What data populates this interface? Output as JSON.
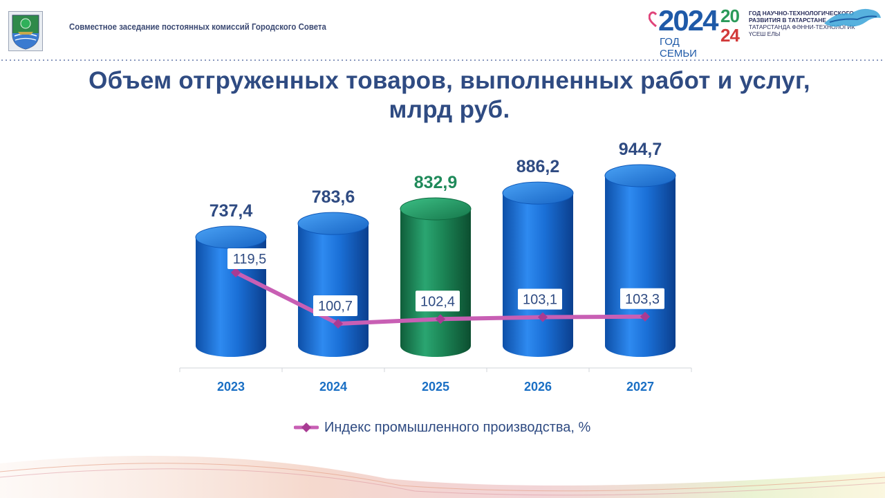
{
  "header": {
    "text": "Совместное заседание постоянных комиссий Городского Совета"
  },
  "logos": {
    "year_number": "2024",
    "year_caption": "ГОД СЕМЬИ",
    "tech_year_lines": [
      "20",
      "24"
    ],
    "tech_text_lines": [
      "ГОД НАУЧНО-ТЕХНОЛОГИЧЕСКОГО",
      "РАЗВИТИЯ В ТАТАРСТАНЕ",
      "ТАТАРСТАНДА ФӘННИ-ТЕХНОЛОГИК",
      "ҮСЕШ ЕЛЫ"
    ]
  },
  "title": {
    "line1": "Объем отгруженных товаров, выполненных работ и услуг,",
    "line2": "млрд руб."
  },
  "chart_data": {
    "type": "bar",
    "categories": [
      "2023",
      "2024",
      "2025",
      "2026",
      "2027"
    ],
    "series": [
      {
        "values": [
          737.4,
          783.6,
          832.9,
          886.2,
          944.7
        ],
        "labels": [
          "737,4",
          "783,6",
          "832,9",
          "886,2",
          "944,7"
        ]
      },
      {
        "type": "line",
        "name": "Индекс промышленного производства, %",
        "values": [
          119.5,
          100.7,
          102.4,
          103.1,
          103.3
        ],
        "labels": [
          "119,5",
          "100,7",
          "102,4",
          "103,1",
          "103,3"
        ]
      }
    ],
    "highlight_index": 2,
    "legend_position": "bottom",
    "colors": {
      "bar": "#1a6fd0",
      "bar_highlight": "#1f8a5a",
      "bar_label": "#2f4b82",
      "bar_label_highlight": "#1f8a5a",
      "line": "#c85fb4",
      "marker": "#a83b93",
      "category_label": "#1a6fc4"
    },
    "grid": false
  }
}
